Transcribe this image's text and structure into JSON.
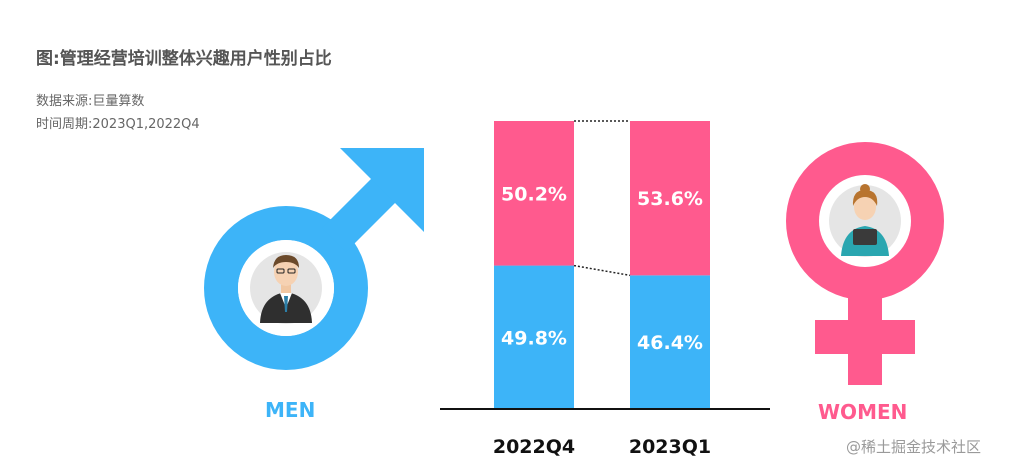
{
  "title": "图:管理经营培训整体兴趣用户性别占比",
  "source": "数据来源:巨量算数",
  "period": "时间周期:2023Q1,2022Q4",
  "labels": {
    "men": "MEN",
    "women": "WOMEN"
  },
  "watermark": "@稀土掘金技术社区",
  "colors": {
    "men": "#3db4f8",
    "women": "#ff5a8e",
    "axis": "#111111"
  },
  "icons": {
    "male": "male-symbol-icon",
    "female": "female-symbol-icon"
  },
  "chart_data": {
    "type": "bar",
    "stacked": true,
    "normalized": true,
    "categories": [
      "2022Q4",
      "2023Q1"
    ],
    "series": [
      {
        "name": "MEN",
        "values": [
          49.8,
          46.4
        ],
        "labels": [
          "49.8%",
          "46.4%"
        ]
      },
      {
        "name": "WOMEN",
        "values": [
          50.2,
          53.6
        ],
        "labels": [
          "50.2%",
          "53.6%"
        ]
      }
    ],
    "ylim": [
      0,
      100
    ],
    "title": "图:管理经营培训整体兴趣用户性别占比",
    "xlabel": "",
    "ylabel": ""
  }
}
